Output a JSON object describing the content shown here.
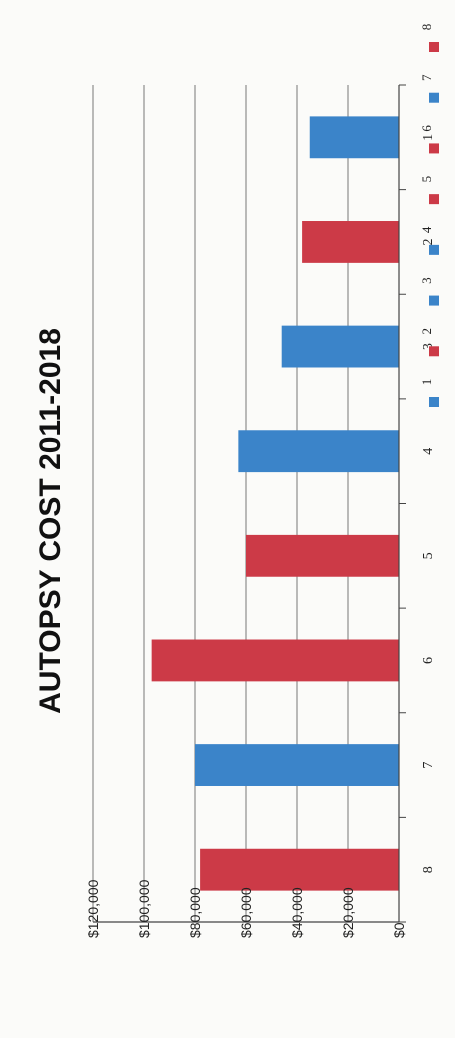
{
  "chart_data": {
    "type": "bar",
    "title": "AUTOPSY COST 2011-2018",
    "xlabel": "",
    "ylabel": "",
    "categories": [
      "1",
      "2",
      "3",
      "4",
      "5",
      "6",
      "7",
      "8"
    ],
    "values": [
      35000,
      38000,
      46000,
      63000,
      60000,
      97000,
      80000,
      78000
    ],
    "bar_colors": [
      "#3b84c9",
      "#cc3a47",
      "#3b84c9",
      "#3b84c9",
      "#cc3a47",
      "#cc3a47",
      "#3b84c9",
      "#cc3a47"
    ],
    "ylim": [
      0,
      120000
    ],
    "y_ticks": [
      {
        "value": 0,
        "label": "$0"
      },
      {
        "value": 20000,
        "label": "$20,000"
      },
      {
        "value": 40000,
        "label": "$40,000"
      },
      {
        "value": 60000,
        "label": "$60,000"
      },
      {
        "value": 80000,
        "label": "$80,000"
      },
      {
        "value": 100000,
        "label": "$100,000"
      },
      {
        "value": 120000,
        "label": "$120,000"
      }
    ],
    "grid": true,
    "orientation": "rotated-90",
    "legend": {
      "placement": "right",
      "entries": [
        {
          "label": "1",
          "color": "#3b84c9"
        },
        {
          "label": "2",
          "color": "#cc3a47"
        },
        {
          "label": "3",
          "color": "#3b84c9"
        },
        {
          "label": "4",
          "color": "#3b84c9"
        },
        {
          "label": "5",
          "color": "#cc3a47"
        },
        {
          "label": "6",
          "color": "#cc3a47"
        },
        {
          "label": "7",
          "color": "#3b84c9"
        },
        {
          "label": "8",
          "color": "#cc3a47"
        }
      ]
    }
  }
}
